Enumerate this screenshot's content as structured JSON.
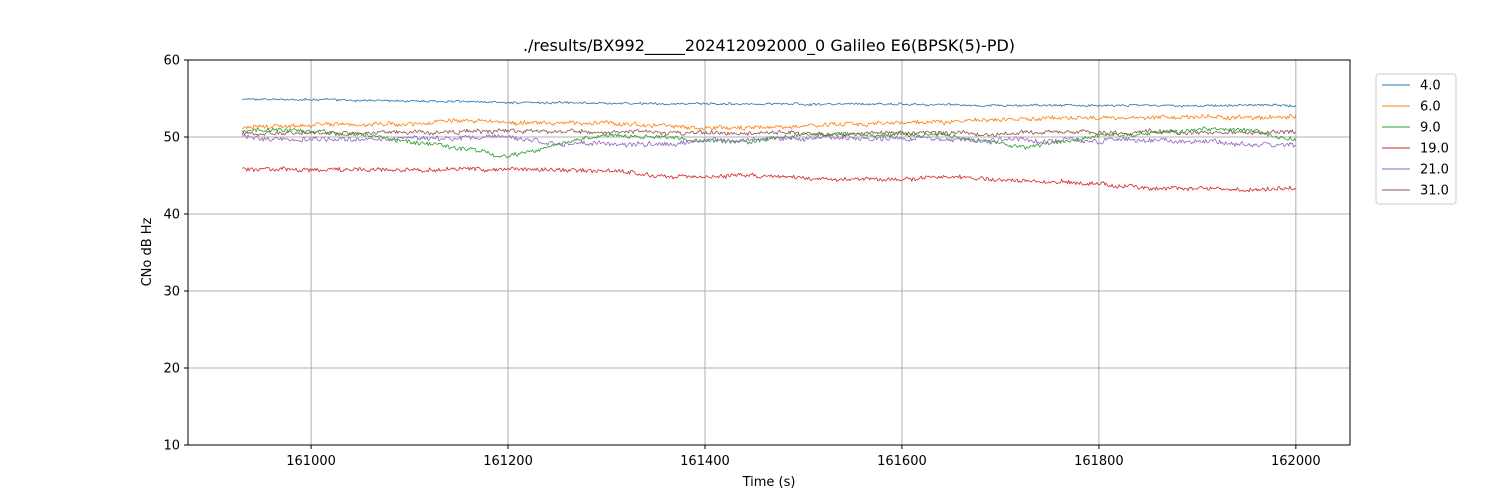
{
  "chart_data": {
    "type": "line",
    "title": "./results/BX992_____202412092000_0 Galileo E6(BPSK(5)-PD)",
    "xlabel": "Time (s)",
    "ylabel": "CNo dB Hz",
    "xlim": [
      160875,
      162055
    ],
    "ylim": [
      10,
      60
    ],
    "xticks": [
      161000,
      161200,
      161400,
      161600,
      161800,
      162000
    ],
    "yticks": [
      10,
      20,
      30,
      40,
      50,
      60
    ],
    "grid": true,
    "legend": "outside-top-right",
    "x_start": 160930,
    "x_end": 162000,
    "series": [
      {
        "name": "4.0",
        "color": "#1f77b4",
        "noise": 0.18,
        "anchors": [
          [
            160930,
            54.9
          ],
          [
            161000,
            54.9
          ],
          [
            161100,
            54.7
          ],
          [
            161200,
            54.5
          ],
          [
            161300,
            54.4
          ],
          [
            161400,
            54.3
          ],
          [
            161500,
            54.3
          ],
          [
            161600,
            54.3
          ],
          [
            161700,
            54.1
          ],
          [
            161800,
            54.1
          ],
          [
            161900,
            54.1
          ],
          [
            162000,
            54.1
          ]
        ]
      },
      {
        "name": "6.0",
        "color": "#ff7f0e",
        "noise": 0.35,
        "anchors": [
          [
            160930,
            51.3
          ],
          [
            161000,
            51.5
          ],
          [
            161100,
            51.7
          ],
          [
            161150,
            52.2
          ],
          [
            161200,
            51.9
          ],
          [
            161300,
            51.9
          ],
          [
            161350,
            51.4
          ],
          [
            161400,
            51.1
          ],
          [
            161500,
            51.4
          ],
          [
            161600,
            51.9
          ],
          [
            161700,
            52.2
          ],
          [
            161800,
            52.5
          ],
          [
            161900,
            52.6
          ],
          [
            162000,
            52.6
          ]
        ]
      },
      {
        "name": "9.0",
        "color": "#2ca02c",
        "noise": 0.35,
        "anchors": [
          [
            160930,
            50.8
          ],
          [
            161000,
            50.8
          ],
          [
            161050,
            50.3
          ],
          [
            161100,
            49.4
          ],
          [
            161150,
            48.7
          ],
          [
            161180,
            48.0
          ],
          [
            161200,
            47.5
          ],
          [
            161230,
            48.3
          ],
          [
            161260,
            49.5
          ],
          [
            161300,
            50.3
          ],
          [
            161400,
            49.7
          ],
          [
            161450,
            49.3
          ],
          [
            161500,
            50.4
          ],
          [
            161600,
            50.3
          ],
          [
            161650,
            50.1
          ],
          [
            161700,
            49.0
          ],
          [
            161730,
            48.6
          ],
          [
            161760,
            49.3
          ],
          [
            161800,
            50.1
          ],
          [
            161900,
            51.0
          ],
          [
            161950,
            50.9
          ],
          [
            162000,
            49.5
          ]
        ]
      },
      {
        "name": "19.0",
        "color": "#d62728",
        "noise": 0.35,
        "anchors": [
          [
            160930,
            45.9
          ],
          [
            161000,
            45.8
          ],
          [
            161100,
            45.8
          ],
          [
            161200,
            45.8
          ],
          [
            161300,
            45.6
          ],
          [
            161350,
            45.0
          ],
          [
            161400,
            44.8
          ],
          [
            161450,
            45.0
          ],
          [
            161500,
            44.7
          ],
          [
            161600,
            44.5
          ],
          [
            161650,
            44.7
          ],
          [
            161700,
            44.5
          ],
          [
            161750,
            44.3
          ],
          [
            161800,
            44.0
          ],
          [
            161850,
            43.4
          ],
          [
            161900,
            43.3
          ],
          [
            161950,
            43.2
          ],
          [
            162000,
            43.3
          ]
        ]
      },
      {
        "name": "21.0",
        "color": "#9467bd",
        "noise": 0.4,
        "anchors": [
          [
            160930,
            49.9
          ],
          [
            161000,
            49.6
          ],
          [
            161100,
            49.8
          ],
          [
            161200,
            50.0
          ],
          [
            161250,
            49.2
          ],
          [
            161300,
            49.2
          ],
          [
            161350,
            48.9
          ],
          [
            161400,
            49.6
          ],
          [
            161500,
            49.9
          ],
          [
            161600,
            49.8
          ],
          [
            161700,
            49.6
          ],
          [
            161800,
            49.6
          ],
          [
            161900,
            49.5
          ],
          [
            162000,
            48.9
          ]
        ]
      },
      {
        "name": "31.0",
        "color": "#8c564b",
        "noise": 0.35,
        "anchors": [
          [
            160930,
            50.4
          ],
          [
            161000,
            50.5
          ],
          [
            161100,
            50.6
          ],
          [
            161200,
            50.7
          ],
          [
            161300,
            50.7
          ],
          [
            161400,
            50.6
          ],
          [
            161500,
            50.4
          ],
          [
            161600,
            50.5
          ],
          [
            161700,
            50.5
          ],
          [
            161800,
            50.6
          ],
          [
            161900,
            50.6
          ],
          [
            162000,
            50.7
          ]
        ]
      }
    ]
  }
}
